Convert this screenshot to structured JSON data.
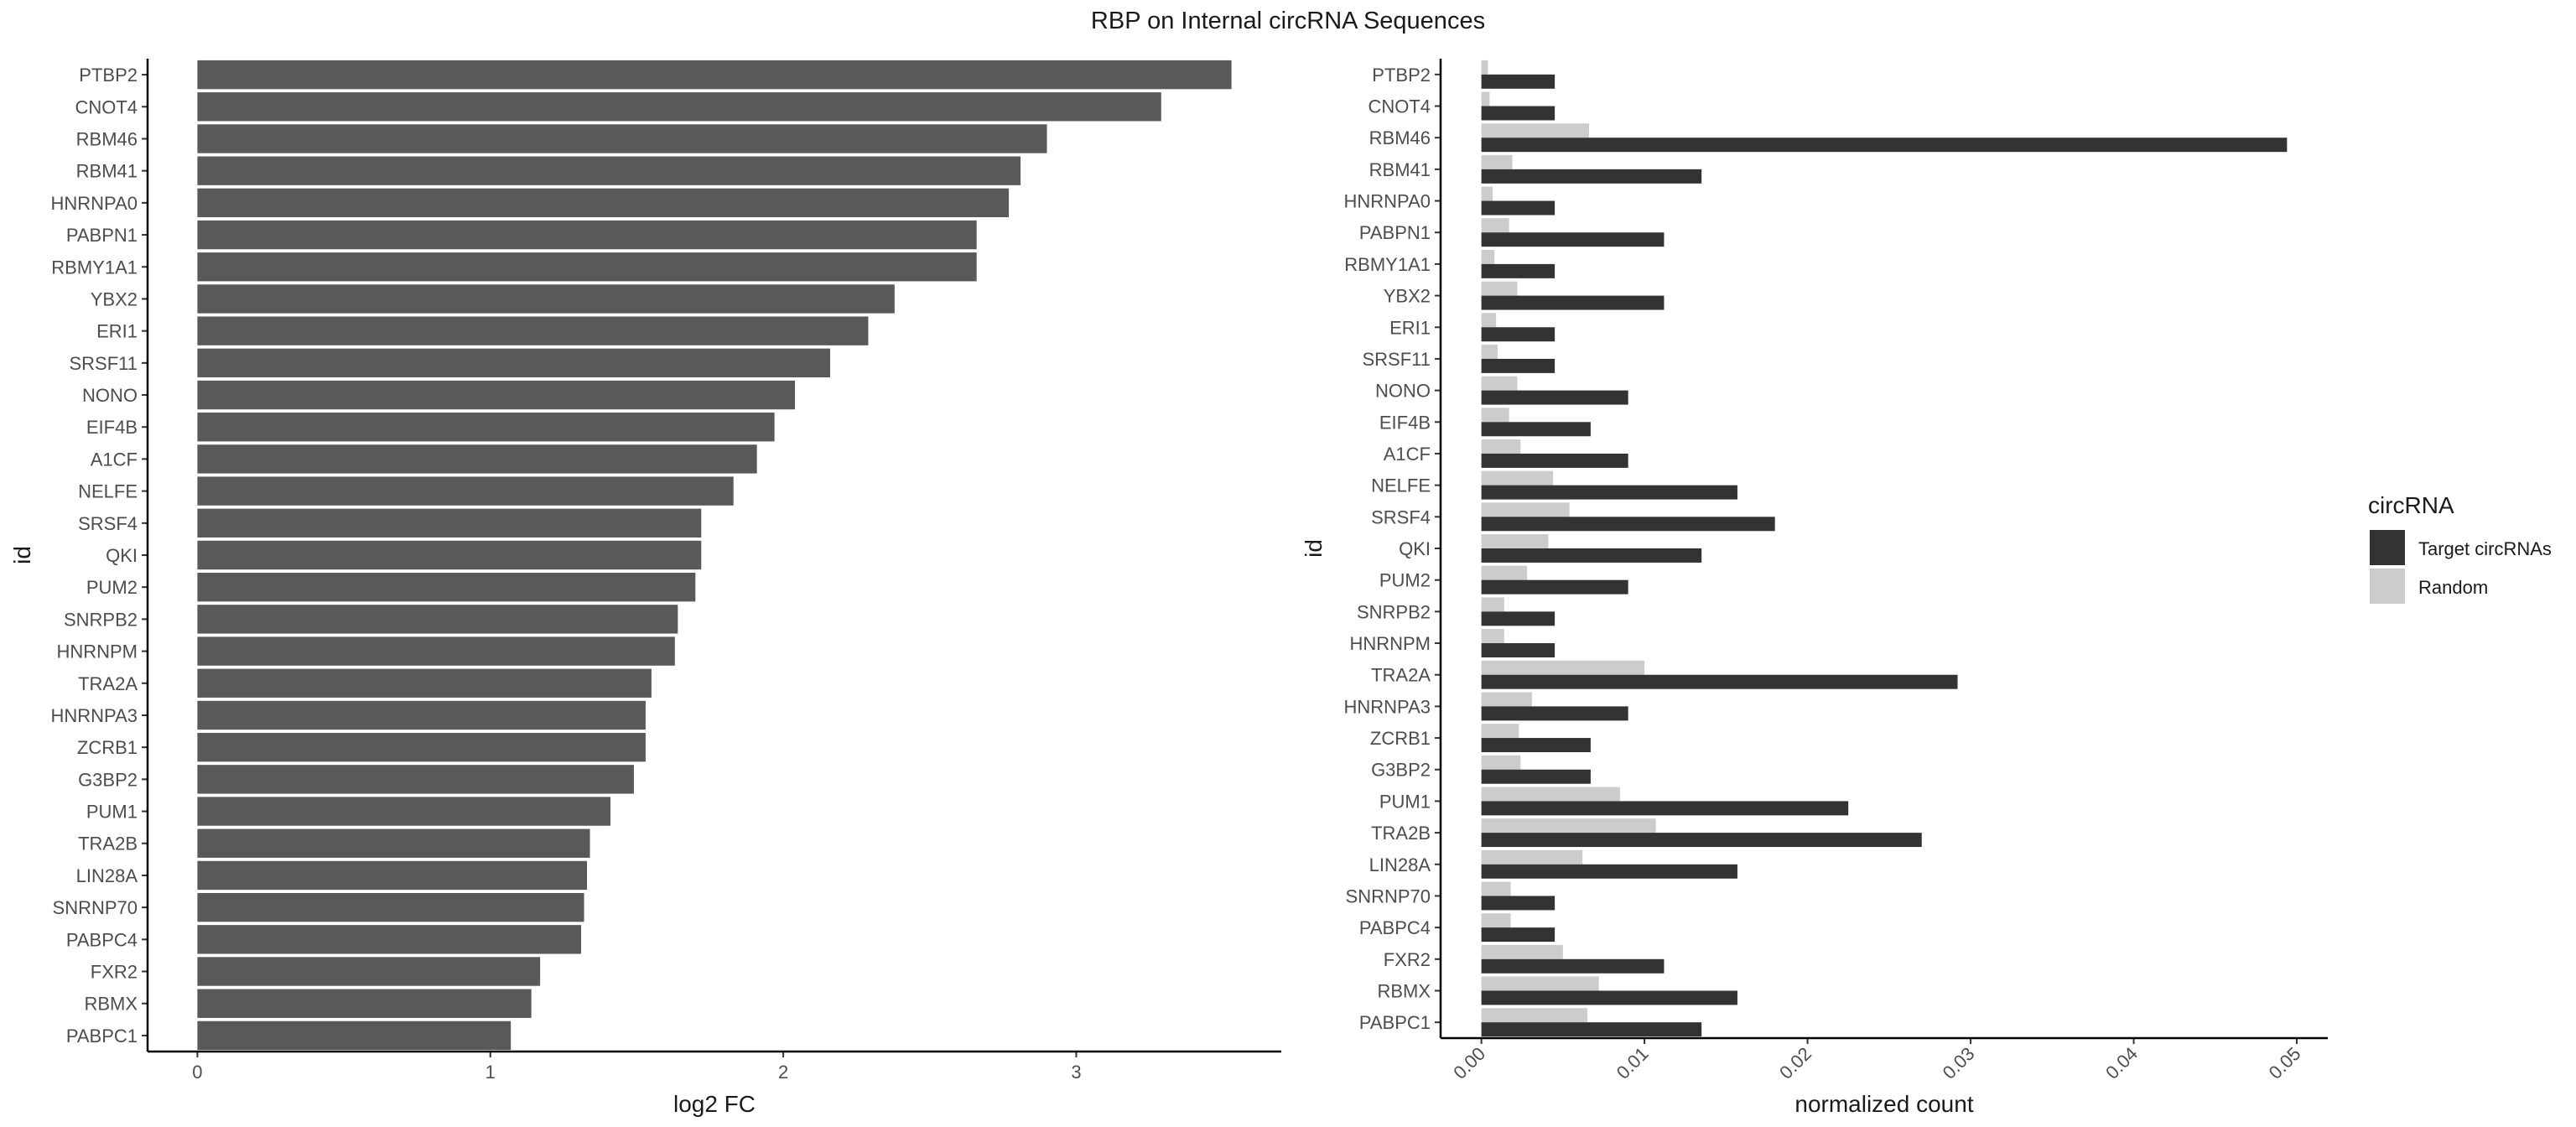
{
  "title": "RBP on Internal circRNA Sequences",
  "chart_data": [
    {
      "type": "bar",
      "orientation": "horizontal",
      "categories": [
        "PTBP2",
        "CNOT4",
        "RBM46",
        "RBM41",
        "HNRNPA0",
        "PABPN1",
        "RBMY1A1",
        "YBX2",
        "ERI1",
        "SRSF11",
        "NONO",
        "EIF4B",
        "A1CF",
        "NELFE",
        "SRSF4",
        "QKI",
        "PUM2",
        "SNRPB2",
        "HNRNPM",
        "TRA2A",
        "HNRNPA3",
        "ZCRB1",
        "G3BP2",
        "PUM1",
        "TRA2B",
        "LIN28A",
        "SNRNP70",
        "PABPC4",
        "FXR2",
        "RBMX",
        "PABPC1"
      ],
      "values": [
        3.53,
        3.29,
        2.9,
        2.81,
        2.77,
        2.66,
        2.66,
        2.38,
        2.29,
        2.16,
        2.04,
        1.97,
        1.91,
        1.83,
        1.72,
        1.72,
        1.7,
        1.64,
        1.63,
        1.55,
        1.53,
        1.53,
        1.49,
        1.41,
        1.34,
        1.33,
        1.32,
        1.31,
        1.17,
        1.14,
        1.07
      ],
      "xlabel": "log2 FC",
      "ylabel": "id",
      "xlim": [
        -0.17,
        3.7
      ],
      "xticks": [
        0,
        1,
        2,
        3
      ],
      "xtick_labels": [
        "0",
        "1",
        "2",
        "3"
      ],
      "color": "#595959",
      "grid": false
    },
    {
      "type": "bar",
      "orientation": "horizontal",
      "grouped": true,
      "categories": [
        "PTBP2",
        "CNOT4",
        "RBM46",
        "RBM41",
        "HNRNPA0",
        "PABPN1",
        "RBMY1A1",
        "YBX2",
        "ERI1",
        "SRSF11",
        "NONO",
        "EIF4B",
        "A1CF",
        "NELFE",
        "SRSF4",
        "QKI",
        "PUM2",
        "SNRPB2",
        "HNRNPM",
        "TRA2A",
        "HNRNPA3",
        "ZCRB1",
        "G3BP2",
        "PUM1",
        "TRA2B",
        "LIN28A",
        "SNRNP70",
        "PABPC4",
        "FXR2",
        "RBMX",
        "PABPC1"
      ],
      "series": [
        {
          "name": "Target circRNAs",
          "color": "#333333",
          "values": [
            0.0045,
            0.0045,
            0.0494,
            0.0135,
            0.0045,
            0.0112,
            0.0045,
            0.0112,
            0.0045,
            0.0045,
            0.009,
            0.0067,
            0.009,
            0.0157,
            0.018,
            0.0135,
            0.009,
            0.0045,
            0.0045,
            0.0292,
            0.009,
            0.0067,
            0.0067,
            0.0225,
            0.027,
            0.0157,
            0.0045,
            0.0045,
            0.0112,
            0.0157,
            0.0135
          ]
        },
        {
          "name": "Random",
          "color": "#cccccc",
          "values": [
            0.0004,
            0.0005,
            0.0066,
            0.0019,
            0.0007,
            0.0017,
            0.0008,
            0.0022,
            0.0009,
            0.001,
            0.0022,
            0.0017,
            0.0024,
            0.0044,
            0.0054,
            0.0041,
            0.0028,
            0.0014,
            0.0014,
            0.01,
            0.0031,
            0.0023,
            0.0024,
            0.0085,
            0.0107,
            0.0062,
            0.0018,
            0.0018,
            0.005,
            0.0072,
            0.0065
          ]
        }
      ],
      "xlabel": "normalized count",
      "ylabel": "id",
      "xlim": [
        -0.0025,
        0.0519
      ],
      "xticks": [
        0,
        0.01,
        0.02,
        0.03,
        0.04,
        0.05
      ],
      "xtick_labels": [
        "0.00",
        "0.01",
        "0.02",
        "0.03",
        "0.04",
        "0.05"
      ],
      "legend_title": "circRNA",
      "legend_position": "right",
      "grid": false
    }
  ]
}
